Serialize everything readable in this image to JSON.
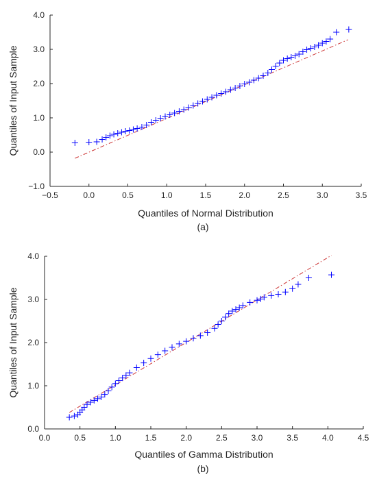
{
  "colors": {
    "marker": "#0000ff",
    "reference_line": "#cc3333",
    "axis": "#262626"
  },
  "chart_data": [
    {
      "type": "scatter",
      "caption": "(a)",
      "xlabel": "Quantiles of Normal Distribution",
      "ylabel": "Quantiles of Input Sample",
      "xlim": [
        -0.5,
        3.5
      ],
      "ylim": [
        -1.0,
        4.0
      ],
      "xticks": [
        -0.5,
        0.0,
        0.5,
        1.0,
        1.5,
        2.0,
        2.5,
        3.0,
        3.5
      ],
      "xtick_labels": [
        "−0.5",
        "0.0",
        "0.5",
        "1.0",
        "1.5",
        "2.0",
        "2.5",
        "3.0",
        "3.5"
      ],
      "yticks": [
        -1.0,
        0.0,
        1.0,
        2.0,
        3.0,
        4.0
      ],
      "ytick_labels": [
        "−1.0",
        "0.0",
        "1.0",
        "2.0",
        "3.0",
        "4.0"
      ],
      "grid": false,
      "marker": "+",
      "reference_line": {
        "style": "dash-dot",
        "x": [
          -0.18,
          3.33
        ],
        "y": [
          -0.18,
          3.28
        ]
      },
      "series": [
        {
          "x": [
            -0.18,
            0.0,
            0.1,
            0.17,
            0.22,
            0.27,
            0.32,
            0.37,
            0.42,
            0.47,
            0.52,
            0.57,
            0.62,
            0.68,
            0.74,
            0.8,
            0.86,
            0.92,
            0.98,
            1.04,
            1.1,
            1.16,
            1.22,
            1.28,
            1.34,
            1.4,
            1.46,
            1.52,
            1.58,
            1.64,
            1.7,
            1.76,
            1.82,
            1.88,
            1.94,
            2.0,
            2.06,
            2.12,
            2.18,
            2.24,
            2.3,
            2.35,
            2.4,
            2.45,
            2.5,
            2.55,
            2.6,
            2.65,
            2.7,
            2.75,
            2.8,
            2.85,
            2.9,
            2.95,
            3.0,
            3.05,
            3.1,
            3.18,
            3.34
          ],
          "y": [
            0.27,
            0.29,
            0.3,
            0.37,
            0.43,
            0.48,
            0.52,
            0.55,
            0.58,
            0.61,
            0.63,
            0.66,
            0.69,
            0.73,
            0.79,
            0.87,
            0.93,
            0.99,
            1.04,
            1.09,
            1.14,
            1.19,
            1.24,
            1.3,
            1.36,
            1.42,
            1.48,
            1.54,
            1.6,
            1.66,
            1.71,
            1.76,
            1.82,
            1.87,
            1.93,
            1.99,
            2.04,
            2.1,
            2.16,
            2.23,
            2.31,
            2.41,
            2.51,
            2.6,
            2.68,
            2.73,
            2.77,
            2.81,
            2.86,
            2.93,
            2.99,
            3.03,
            3.07,
            3.12,
            3.18,
            3.23,
            3.3,
            3.5,
            3.58
          ]
        }
      ]
    },
    {
      "type": "scatter",
      "caption": "(b)",
      "xlabel": "Quantiles of Gamma Distribution",
      "ylabel": "Quantiles of Input Sample",
      "xlim": [
        0.0,
        4.5
      ],
      "ylim": [
        0.0,
        4.0
      ],
      "xticks": [
        0.0,
        0.5,
        1.0,
        1.5,
        2.0,
        2.5,
        3.0,
        3.5,
        4.0,
        4.5
      ],
      "xtick_labels": [
        "0.0",
        "0.5",
        "1.0",
        "1.5",
        "2.0",
        "2.5",
        "3.0",
        "3.5",
        "4.0",
        "4.5"
      ],
      "yticks": [
        0.0,
        1.0,
        2.0,
        3.0,
        4.0
      ],
      "ytick_labels": [
        "0.0",
        "1.0",
        "2.0",
        "3.0",
        "4.0"
      ],
      "grid": false,
      "marker": "+",
      "reference_line": {
        "style": "dash-dot",
        "x": [
          0.35,
          4.05
        ],
        "y": [
          0.38,
          4.02
        ]
      },
      "series": [
        {
          "x": [
            0.35,
            0.42,
            0.47,
            0.5,
            0.53,
            0.56,
            0.6,
            0.65,
            0.7,
            0.75,
            0.8,
            0.85,
            0.9,
            0.95,
            1.0,
            1.05,
            1.1,
            1.15,
            1.2,
            1.3,
            1.4,
            1.5,
            1.6,
            1.7,
            1.8,
            1.9,
            2.0,
            2.1,
            2.2,
            2.3,
            2.4,
            2.45,
            2.5,
            2.55,
            2.6,
            2.65,
            2.7,
            2.75,
            2.8,
            2.9,
            3.0,
            3.05,
            3.1,
            3.2,
            3.3,
            3.4,
            3.5,
            3.58,
            3.73,
            4.05
          ],
          "y": [
            0.27,
            0.3,
            0.33,
            0.38,
            0.44,
            0.5,
            0.57,
            0.62,
            0.66,
            0.7,
            0.74,
            0.8,
            0.88,
            0.97,
            1.05,
            1.12,
            1.18,
            1.24,
            1.3,
            1.42,
            1.53,
            1.63,
            1.72,
            1.81,
            1.89,
            1.97,
            2.03,
            2.1,
            2.16,
            2.23,
            2.33,
            2.42,
            2.5,
            2.59,
            2.67,
            2.73,
            2.77,
            2.81,
            2.86,
            2.93,
            2.98,
            3.01,
            3.05,
            3.09,
            3.12,
            3.17,
            3.25,
            3.35,
            3.5,
            3.57
          ]
        }
      ]
    }
  ]
}
